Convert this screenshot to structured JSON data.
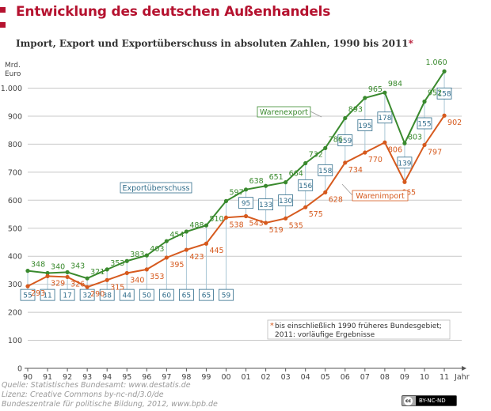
{
  "header": {
    "title": "Entwicklung des deutschen Außenhandels",
    "subtitle": "Import, Export und Exportüberschuss in absoluten Zahlen, 1990 bis 2011",
    "subtitle_asterisk": "*"
  },
  "colors": {
    "accent": "#b5122f",
    "export": "#3a8a2e",
    "import": "#d65a1e",
    "surplus": "#2f6c8a",
    "grid": "#c8c8c8"
  },
  "chart_data": {
    "type": "line",
    "title": "Entwicklung des deutschen Außenhandels",
    "subtitle": "Import, Export und Exportüberschuss in absoluten Zahlen, 1990 bis 2011",
    "ylabel_line1": "Mrd.",
    "ylabel_line2": "Euro",
    "xlabel": "Jahr",
    "ylim": [
      0,
      1100
    ],
    "yticks": [
      0,
      100,
      200,
      300,
      400,
      500,
      600,
      700,
      800,
      900,
      1000
    ],
    "ytick_labels": [
      "0",
      "100",
      "200",
      "300",
      "400",
      "500",
      "600",
      "700",
      "800",
      "900",
      "1.000"
    ],
    "categories": [
      "90",
      "91",
      "92",
      "93",
      "94",
      "95",
      "96",
      "97",
      "98",
      "99",
      "00",
      "01",
      "02",
      "03",
      "04",
      "05",
      "06",
      "07",
      "08",
      "09",
      "10",
      "11"
    ],
    "grid": true,
    "series": [
      {
        "name": "Warenexport",
        "values": [
          348,
          340,
          343,
          321,
          353,
          383,
          403,
          454,
          488,
          510,
          597,
          638,
          651,
          664,
          732,
          786,
          893,
          965,
          984,
          803,
          952,
          1060
        ],
        "labels": [
          "348",
          "340",
          "343",
          "321",
          "353",
          "383",
          "403",
          "454",
          "488",
          "510",
          "597",
          "638",
          "651",
          "664",
          "732",
          "786",
          "893",
          "965",
          "984",
          "803",
          "952",
          "1.060"
        ]
      },
      {
        "name": "Warenimport",
        "values": [
          293,
          329,
          326,
          290,
          315,
          340,
          353,
          395,
          423,
          445,
          538,
          543,
          519,
          535,
          575,
          628,
          734,
          770,
          806,
          665,
          797,
          902
        ],
        "labels": [
          "293",
          "329",
          "326",
          "290",
          "315",
          "340",
          "353",
          "395",
          "423",
          "445",
          "538",
          "543",
          "519",
          "535",
          "575",
          "628",
          "734",
          "770",
          "806",
          "665",
          "797",
          "902"
        ]
      },
      {
        "name": "Exportüberschuss",
        "values": [
          55,
          11,
          17,
          32,
          38,
          44,
          50,
          60,
          65,
          65,
          59,
          95,
          133,
          130,
          156,
          158,
          159,
          195,
          178,
          139,
          155,
          158
        ]
      }
    ],
    "legend": {
      "export_label": "Warenexport",
      "import_label": "Warenimport",
      "surplus_label": "Exportüberschuss"
    },
    "note": {
      "line1": "bis einschließlich 1990 früheres Bundesgebiet;",
      "line2": "2011: vorläufige Ergebnisse",
      "asterisk": "*"
    }
  },
  "footer": {
    "source": "Quelle: Statistisches Bundesamt: www.destatis.de",
    "license": "Lizenz: Creative Commons by-nc-nd/3.0/de",
    "publisher": "Bundeszentrale für politische Bildung, 2012, www.bpb.de",
    "cc_badge": "BY-NC-ND",
    "cc_symbol": "cc"
  }
}
